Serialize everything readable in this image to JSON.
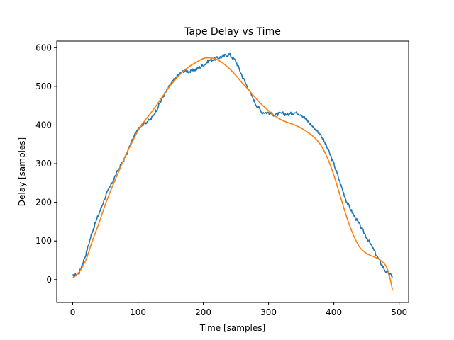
{
  "chart_data": {
    "type": "line",
    "title": "Tape Delay vs Time",
    "xlabel": "Time [samples]",
    "ylabel": "Delay [samples]",
    "xlim": [
      -24.5,
      514.5
    ],
    "ylim": [
      -59,
      617
    ],
    "x_ticks": [
      0,
      100,
      200,
      300,
      400,
      500
    ],
    "y_ticks": [
      0,
      100,
      200,
      300,
      400,
      500,
      600
    ],
    "grid": false,
    "legend": "none",
    "series": [
      {
        "color": "#1f77b4",
        "style": "noisy",
        "points": [
          [
            0,
            8
          ],
          [
            10,
            18
          ],
          [
            20,
            65
          ],
          [
            30,
            125
          ],
          [
            40,
            170
          ],
          [
            50,
            215
          ],
          [
            60,
            250
          ],
          [
            70,
            285
          ],
          [
            80,
            315
          ],
          [
            90,
            355
          ],
          [
            100,
            393
          ],
          [
            110,
            405
          ],
          [
            120,
            415
          ],
          [
            130,
            445
          ],
          [
            140,
            478
          ],
          [
            150,
            505
          ],
          [
            160,
            527
          ],
          [
            170,
            540
          ],
          [
            180,
            538
          ],
          [
            190,
            545
          ],
          [
            200,
            555
          ],
          [
            210,
            568
          ],
          [
            220,
            572
          ],
          [
            230,
            578
          ],
          [
            240,
            583
          ],
          [
            250,
            565
          ],
          [
            260,
            525
          ],
          [
            270,
            490
          ],
          [
            280,
            455
          ],
          [
            290,
            433
          ],
          [
            300,
            432
          ],
          [
            310,
            426
          ],
          [
            320,
            430
          ],
          [
            330,
            427
          ],
          [
            340,
            432
          ],
          [
            350,
            428
          ],
          [
            360,
            410
          ],
          [
            370,
            392
          ],
          [
            380,
            375
          ],
          [
            390,
            340
          ],
          [
            400,
            300
          ],
          [
            410,
            248
          ],
          [
            420,
            200
          ],
          [
            430,
            168
          ],
          [
            440,
            140
          ],
          [
            450,
            110
          ],
          [
            460,
            80
          ],
          [
            470,
            48
          ],
          [
            480,
            20
          ],
          [
            490,
            8
          ]
        ]
      },
      {
        "color": "#ff7f0e",
        "style": "smooth",
        "points": [
          [
            0,
            4
          ],
          [
            10,
            20
          ],
          [
            20,
            50
          ],
          [
            30,
            100
          ],
          [
            40,
            145
          ],
          [
            50,
            195
          ],
          [
            60,
            238
          ],
          [
            70,
            278
          ],
          [
            80,
            318
          ],
          [
            90,
            352
          ],
          [
            100,
            385
          ],
          [
            110,
            410
          ],
          [
            120,
            432
          ],
          [
            130,
            455
          ],
          [
            140,
            480
          ],
          [
            150,
            503
          ],
          [
            160,
            523
          ],
          [
            170,
            540
          ],
          [
            180,
            553
          ],
          [
            190,
            563
          ],
          [
            200,
            572
          ],
          [
            210,
            574
          ],
          [
            220,
            570
          ],
          [
            230,
            560
          ],
          [
            240,
            546
          ],
          [
            250,
            528
          ],
          [
            260,
            508
          ],
          [
            270,
            490
          ],
          [
            280,
            470
          ],
          [
            290,
            452
          ],
          [
            300,
            437
          ],
          [
            310,
            423
          ],
          [
            320,
            413
          ],
          [
            330,
            406
          ],
          [
            340,
            400
          ],
          [
            350,
            392
          ],
          [
            360,
            381
          ],
          [
            370,
            368
          ],
          [
            380,
            348
          ],
          [
            390,
            315
          ],
          [
            400,
            270
          ],
          [
            410,
            215
          ],
          [
            420,
            160
          ],
          [
            430,
            115
          ],
          [
            440,
            83
          ],
          [
            450,
            68
          ],
          [
            460,
            60
          ],
          [
            470,
            52
          ],
          [
            480,
            35
          ],
          [
            485,
            10
          ],
          [
            490,
            -28
          ]
        ]
      }
    ]
  }
}
